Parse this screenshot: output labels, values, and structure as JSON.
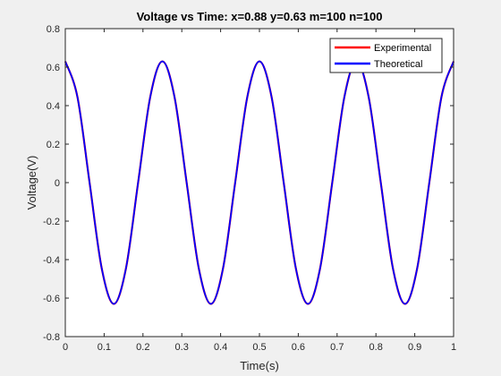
{
  "chart_data": {
    "type": "line",
    "title": "Voltage vs Time: x=0.88 y=0.63 m=100 n=100",
    "xlabel": "Time(s)",
    "ylabel": "Voltage(V)",
    "xlim": [
      0,
      1
    ],
    "ylim": [
      -0.8,
      0.8
    ],
    "xticks": [
      0,
      0.1,
      0.2,
      0.3,
      0.4,
      0.5,
      0.6,
      0.7,
      0.8,
      0.9,
      1
    ],
    "xtick_labels": [
      "0",
      "0.1",
      "0.2",
      "0.3",
      "0.4",
      "0.5",
      "0.6",
      "0.7",
      "0.8",
      "0.9",
      "1"
    ],
    "yticks": [
      -0.8,
      -0.6,
      -0.4,
      -0.2,
      0,
      0.2,
      0.4,
      0.6,
      0.8
    ],
    "ytick_labels": [
      "-0.8",
      "-0.6",
      "-0.4",
      "-0.2",
      "0",
      "0.2",
      "0.4",
      "0.6",
      "0.8"
    ],
    "grid": false,
    "legend_position": "top-right",
    "series": [
      {
        "name": "Experimental",
        "color": "#ff0000",
        "x": [
          0,
          0.03125,
          0.0625,
          0.09375,
          0.125,
          0.15625,
          0.1875,
          0.21875,
          0.25,
          0.28125,
          0.3125,
          0.34375,
          0.375,
          0.40625,
          0.4375,
          0.46875,
          0.5,
          0.53125,
          0.5625,
          0.59375,
          0.625,
          0.65625,
          0.6875,
          0.71875,
          0.75,
          0.78125,
          0.8125,
          0.84375,
          0.875,
          0.90625,
          0.9375,
          0.96875,
          1
        ],
        "y": [
          0.63,
          0.445,
          0,
          -0.445,
          -0.63,
          -0.445,
          0,
          0.445,
          0.63,
          0.445,
          0,
          -0.445,
          -0.63,
          -0.445,
          0,
          0.445,
          0.63,
          0.445,
          0,
          -0.445,
          -0.63,
          -0.445,
          0,
          0.445,
          0.63,
          0.445,
          0,
          -0.445,
          -0.63,
          -0.445,
          0,
          0.445,
          0.63
        ]
      },
      {
        "name": "Theoretical",
        "color": "#0000ff",
        "x": [
          0,
          0.03125,
          0.0625,
          0.09375,
          0.125,
          0.15625,
          0.1875,
          0.21875,
          0.25,
          0.28125,
          0.3125,
          0.34375,
          0.375,
          0.40625,
          0.4375,
          0.46875,
          0.5,
          0.53125,
          0.5625,
          0.59375,
          0.625,
          0.65625,
          0.6875,
          0.71875,
          0.75,
          0.78125,
          0.8125,
          0.84375,
          0.875,
          0.90625,
          0.9375,
          0.96875,
          1
        ],
        "y": [
          0.63,
          0.445,
          0,
          -0.445,
          -0.63,
          -0.445,
          0,
          0.445,
          0.63,
          0.445,
          0,
          -0.445,
          -0.63,
          -0.445,
          0,
          0.445,
          0.63,
          0.445,
          0,
          -0.445,
          -0.63,
          -0.445,
          0,
          0.445,
          0.63,
          0.445,
          0,
          -0.445,
          -0.63,
          -0.445,
          0,
          0.445,
          0.63
        ]
      }
    ]
  }
}
